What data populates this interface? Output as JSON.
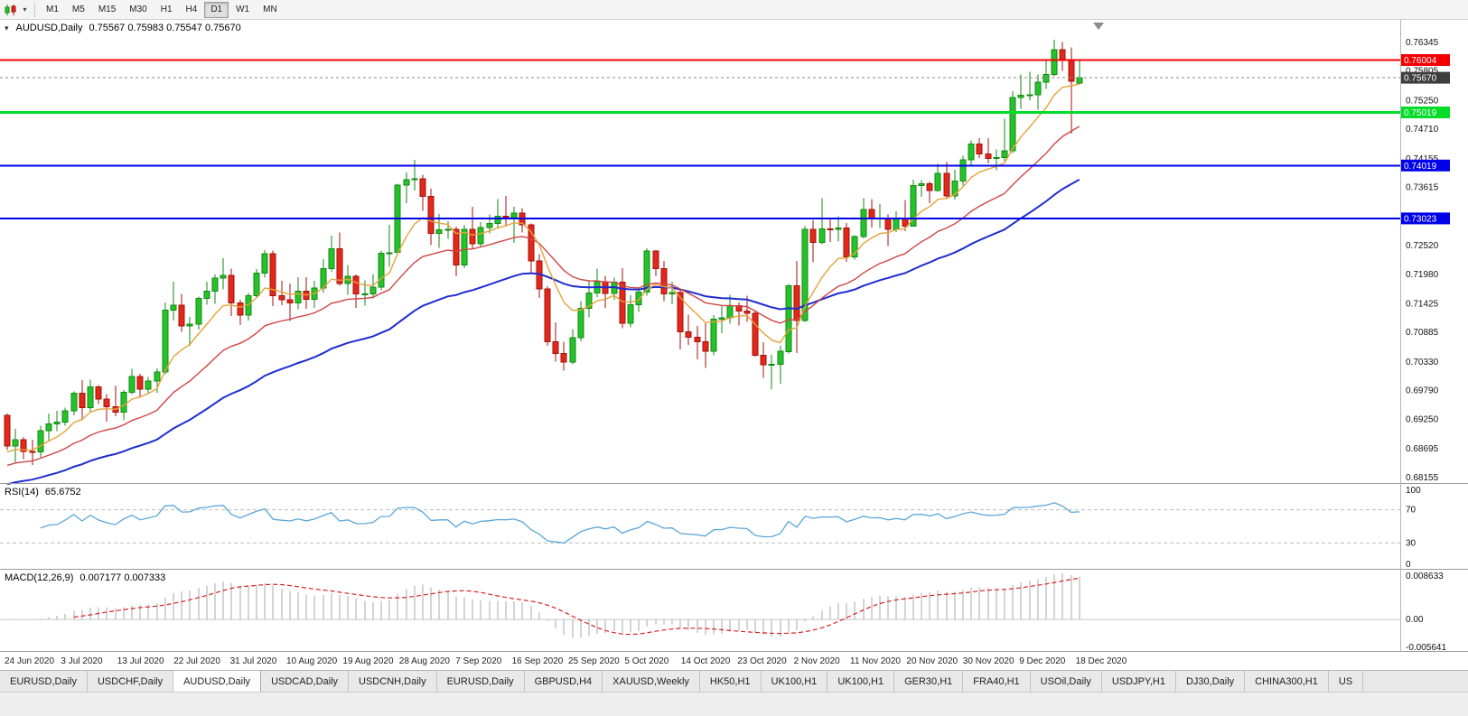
{
  "toolbar": {
    "timeframes": [
      "M1",
      "M5",
      "M15",
      "M30",
      "H1",
      "H4",
      "D1",
      "W1",
      "MN"
    ],
    "active_timeframe": "D1"
  },
  "chart": {
    "title": "AUDUSD,Daily",
    "ohlc_text": "0.75567 0.75983 0.75547 0.75670",
    "current_price": {
      "value": 0.7567,
      "label": "0.75670",
      "badge_color": "#3d3d3d"
    },
    "hlines": [
      {
        "value": 0.76004,
        "label": "0.76004",
        "color": "#f20000",
        "width": 2
      },
      {
        "value": 0.75019,
        "label": "0.75019",
        "color": "#00dc28",
        "width": 3
      },
      {
        "value": 0.74019,
        "label": "0.74019",
        "color": "#0000e8",
        "width": 2
      },
      {
        "value": 0.73023,
        "label": "0.73023",
        "color": "#0000e8",
        "width": 2
      }
    ],
    "colors": {
      "background": "#ffffff",
      "bull_fill": "#26c22b",
      "bull_stroke": "#128a12",
      "bear_fill": "#e3271b",
      "bear_stroke": "#a31208",
      "ma_fast": "#e5a23a",
      "ma_mid": "#d04545",
      "ma_slow": "#1f2dd0",
      "rsi_line": "#5aa6d8",
      "macd_hist": "#a9a9a9",
      "macd_signal": "#d92121"
    }
  },
  "rsi_panel": {
    "label": "RSI(14)",
    "value": "65.6752",
    "levels": [
      "100",
      "70",
      "30",
      "0"
    ]
  },
  "macd_panel": {
    "label": "MACD(12,26,9)",
    "values": "0.007177 0.007333",
    "axis_labels": [
      "0.008633",
      "0.00",
      "-0.005641"
    ]
  },
  "chart_data": {
    "type": "candlestick",
    "symbol": "AUDUSD",
    "timeframe": "Daily",
    "price_range": {
      "top": 0.7676,
      "bottom": 0.6806
    },
    "macd_value_range": {
      "top": 0.0092,
      "bottom": -0.0061
    },
    "y_ticks": [
      "0.76345",
      "0.75805",
      "0.75250",
      "0.74710",
      "0.74155",
      "0.73615",
      "0.73060",
      "0.72520",
      "0.71980",
      "0.71425",
      "0.70885",
      "0.70330",
      "0.69790",
      "0.69250",
      "0.68695",
      "0.68155"
    ],
    "x_labels": [
      "24 Jun 2020",
      "3 Jul 2020",
      "13 Jul 2020",
      "22 Jul 2020",
      "31 Jul 2020",
      "10 Aug 2020",
      "19 Aug 2020",
      "28 Aug 2020",
      "7 Sep 2020",
      "16 Sep 2020",
      "25 Sep 2020",
      "5 Oct 2020",
      "14 Oct 2020",
      "23 Oct 2020",
      "2 Nov 2020",
      "11 Nov 2020",
      "20 Nov 2020",
      "30 Nov 2020",
      "9 Dec 2020",
      "18 Dec 2020"
    ],
    "indicators": {
      "ma_fast_period": 8,
      "ma_mid_period": 21,
      "ma_slow_period": 45,
      "rsi_period": 14,
      "macd": [
        12,
        26,
        9
      ]
    },
    "candles": [
      [
        0.6932,
        0.6935,
        0.6866,
        0.6874
      ],
      [
        0.6874,
        0.6906,
        0.6842,
        0.6886
      ],
      [
        0.6886,
        0.6891,
        0.6849,
        0.6864
      ],
      [
        0.6864,
        0.6886,
        0.6838,
        0.6863
      ],
      [
        0.6863,
        0.6912,
        0.6853,
        0.6903
      ],
      [
        0.6903,
        0.6935,
        0.6883,
        0.6916
      ],
      [
        0.6916,
        0.694,
        0.6902,
        0.6919
      ],
      [
        0.6919,
        0.6946,
        0.6912,
        0.694
      ],
      [
        0.694,
        0.6977,
        0.6932,
        0.6973
      ],
      [
        0.6973,
        0.6998,
        0.6922,
        0.6946
      ],
      [
        0.6946,
        0.6999,
        0.6938,
        0.6985
      ],
      [
        0.6985,
        0.6989,
        0.6953,
        0.6962
      ],
      [
        0.6962,
        0.6972,
        0.692,
        0.6948
      ],
      [
        0.6948,
        0.6988,
        0.693,
        0.6938
      ],
      [
        0.6938,
        0.6979,
        0.6922,
        0.6975
      ],
      [
        0.6975,
        0.7019,
        0.6972,
        0.7005
      ],
      [
        0.7005,
        0.701,
        0.6965,
        0.6981
      ],
      [
        0.6981,
        0.7004,
        0.6974,
        0.6996
      ],
      [
        0.6996,
        0.702,
        0.6974,
        0.7013
      ],
      [
        0.7013,
        0.7144,
        0.7009,
        0.713
      ],
      [
        0.713,
        0.7183,
        0.711,
        0.7139
      ],
      [
        0.7139,
        0.716,
        0.7089,
        0.71
      ],
      [
        0.71,
        0.7117,
        0.7063,
        0.7103
      ],
      [
        0.7103,
        0.7155,
        0.7093,
        0.7152
      ],
      [
        0.7152,
        0.7183,
        0.714,
        0.7165
      ],
      [
        0.7165,
        0.7197,
        0.7142,
        0.719
      ],
      [
        0.719,
        0.7227,
        0.7169,
        0.7195
      ],
      [
        0.7195,
        0.7208,
        0.7119,
        0.7143
      ],
      [
        0.7143,
        0.7149,
        0.7102,
        0.712
      ],
      [
        0.712,
        0.7162,
        0.711,
        0.7157
      ],
      [
        0.7157,
        0.7207,
        0.7153,
        0.7199
      ],
      [
        0.7199,
        0.7243,
        0.7191,
        0.7236
      ],
      [
        0.7236,
        0.7242,
        0.7137,
        0.7157
      ],
      [
        0.7157,
        0.7185,
        0.7139,
        0.7149
      ],
      [
        0.7149,
        0.718,
        0.7109,
        0.7143
      ],
      [
        0.7143,
        0.7192,
        0.7131,
        0.7165
      ],
      [
        0.7165,
        0.7192,
        0.7132,
        0.715
      ],
      [
        0.715,
        0.7185,
        0.7134,
        0.7171
      ],
      [
        0.7171,
        0.7226,
        0.7162,
        0.7208
      ],
      [
        0.7208,
        0.727,
        0.7202,
        0.7245
      ],
      [
        0.7245,
        0.7276,
        0.7176,
        0.718
      ],
      [
        0.718,
        0.7215,
        0.7159,
        0.7193
      ],
      [
        0.7193,
        0.7197,
        0.7134,
        0.716
      ],
      [
        0.716,
        0.7186,
        0.7138,
        0.716
      ],
      [
        0.716,
        0.7198,
        0.7152,
        0.7173
      ],
      [
        0.7173,
        0.7242,
        0.7167,
        0.7237
      ],
      [
        0.7237,
        0.729,
        0.7211,
        0.7238
      ],
      [
        0.7238,
        0.7368,
        0.7233,
        0.7365
      ],
      [
        0.7365,
        0.7389,
        0.7331,
        0.7375
      ],
      [
        0.7375,
        0.7413,
        0.7355,
        0.7377
      ],
      [
        0.7377,
        0.7385,
        0.7317,
        0.7344
      ],
      [
        0.7344,
        0.7358,
        0.7252,
        0.7274
      ],
      [
        0.7274,
        0.7311,
        0.7247,
        0.7281
      ],
      [
        0.7281,
        0.7297,
        0.7264,
        0.7282
      ],
      [
        0.7282,
        0.7287,
        0.7193,
        0.7215
      ],
      [
        0.7215,
        0.729,
        0.7209,
        0.7282
      ],
      [
        0.7282,
        0.7324,
        0.7244,
        0.7255
      ],
      [
        0.7255,
        0.7295,
        0.7249,
        0.7285
      ],
      [
        0.7285,
        0.731,
        0.7274,
        0.7293
      ],
      [
        0.7293,
        0.7339,
        0.7285,
        0.7306
      ],
      [
        0.7306,
        0.7345,
        0.7287,
        0.7304
      ],
      [
        0.7304,
        0.7324,
        0.7256,
        0.7312
      ],
      [
        0.7312,
        0.7322,
        0.7276,
        0.729
      ],
      [
        0.729,
        0.7293,
        0.7199,
        0.7222
      ],
      [
        0.7222,
        0.7235,
        0.7153,
        0.717
      ],
      [
        0.717,
        0.7175,
        0.7063,
        0.707
      ],
      [
        0.707,
        0.7107,
        0.7033,
        0.7048
      ],
      [
        0.7048,
        0.707,
        0.7016,
        0.7032
      ],
      [
        0.7032,
        0.7094,
        0.7028,
        0.7078
      ],
      [
        0.7078,
        0.7147,
        0.7071,
        0.7133
      ],
      [
        0.7133,
        0.7186,
        0.7116,
        0.7162
      ],
      [
        0.7162,
        0.7208,
        0.7154,
        0.7183
      ],
      [
        0.7183,
        0.7194,
        0.7133,
        0.7161
      ],
      [
        0.7161,
        0.7191,
        0.7149,
        0.7182
      ],
      [
        0.7182,
        0.7209,
        0.7096,
        0.7105
      ],
      [
        0.7105,
        0.7158,
        0.7097,
        0.714
      ],
      [
        0.714,
        0.7172,
        0.7126,
        0.7164
      ],
      [
        0.7164,
        0.7246,
        0.7157,
        0.7241
      ],
      [
        0.7241,
        0.7243,
        0.7193,
        0.7208
      ],
      [
        0.7208,
        0.7222,
        0.7147,
        0.716
      ],
      [
        0.716,
        0.7183,
        0.7141,
        0.7163
      ],
      [
        0.7163,
        0.7167,
        0.7056,
        0.7089
      ],
      [
        0.7089,
        0.7121,
        0.7064,
        0.7079
      ],
      [
        0.7079,
        0.71,
        0.7037,
        0.707
      ],
      [
        0.707,
        0.7105,
        0.7021,
        0.7052
      ],
      [
        0.7052,
        0.712,
        0.7045,
        0.7113
      ],
      [
        0.7113,
        0.7138,
        0.7086,
        0.7115
      ],
      [
        0.7115,
        0.7159,
        0.7104,
        0.7138
      ],
      [
        0.7138,
        0.7144,
        0.7101,
        0.7128
      ],
      [
        0.7128,
        0.7157,
        0.7108,
        0.7124
      ],
      [
        0.7124,
        0.7128,
        0.7042,
        0.7045
      ],
      [
        0.7045,
        0.7069,
        0.7002,
        0.7027
      ],
      [
        0.7027,
        0.7046,
        0.6981,
        0.7028
      ],
      [
        0.7028,
        0.7063,
        0.6991,
        0.7052
      ],
      [
        0.7052,
        0.7179,
        0.7048,
        0.7176
      ],
      [
        0.7176,
        0.7222,
        0.7049,
        0.711
      ],
      [
        0.711,
        0.7288,
        0.7108,
        0.7282
      ],
      [
        0.7282,
        0.7299,
        0.722,
        0.7257
      ],
      [
        0.7257,
        0.734,
        0.7254,
        0.7283
      ],
      [
        0.7283,
        0.7302,
        0.7258,
        0.7282
      ],
      [
        0.7282,
        0.7306,
        0.7259,
        0.7284
      ],
      [
        0.7284,
        0.7294,
        0.7221,
        0.723
      ],
      [
        0.723,
        0.7271,
        0.7225,
        0.7268
      ],
      [
        0.7268,
        0.734,
        0.7265,
        0.7319
      ],
      [
        0.7319,
        0.7339,
        0.7285,
        0.7302
      ],
      [
        0.7302,
        0.7329,
        0.7284,
        0.7303
      ],
      [
        0.7303,
        0.731,
        0.725,
        0.7282
      ],
      [
        0.7282,
        0.7316,
        0.7277,
        0.7302
      ],
      [
        0.7302,
        0.7337,
        0.7278,
        0.7288
      ],
      [
        0.7288,
        0.7375,
        0.7287,
        0.7364
      ],
      [
        0.7364,
        0.7374,
        0.7343,
        0.7368
      ],
      [
        0.7368,
        0.7372,
        0.7331,
        0.7355
      ],
      [
        0.7355,
        0.7405,
        0.7352,
        0.7387
      ],
      [
        0.7387,
        0.7408,
        0.7339,
        0.7345
      ],
      [
        0.7345,
        0.7394,
        0.7338,
        0.7373
      ],
      [
        0.7373,
        0.742,
        0.7364,
        0.7413
      ],
      [
        0.7413,
        0.7449,
        0.74,
        0.7442
      ],
      [
        0.7442,
        0.7453,
        0.7416,
        0.7424
      ],
      [
        0.7424,
        0.7453,
        0.7406,
        0.7415
      ],
      [
        0.7415,
        0.7432,
        0.7393,
        0.7417
      ],
      [
        0.7417,
        0.749,
        0.741,
        0.743
      ],
      [
        0.743,
        0.7542,
        0.7425,
        0.753
      ],
      [
        0.753,
        0.7573,
        0.7509,
        0.7534
      ],
      [
        0.7534,
        0.7578,
        0.7524,
        0.7535
      ],
      [
        0.7535,
        0.7573,
        0.7507,
        0.7559
      ],
      [
        0.7559,
        0.7599,
        0.7546,
        0.7573
      ],
      [
        0.7573,
        0.7639,
        0.757,
        0.762
      ],
      [
        0.762,
        0.7634,
        0.758,
        0.76
      ],
      [
        0.76,
        0.7624,
        0.7462,
        0.756
      ],
      [
        0.75567,
        0.75983,
        0.75547,
        0.7567
      ]
    ]
  },
  "tabs": [
    {
      "label": "EURUSD,Daily",
      "active": false
    },
    {
      "label": "USDCHF,Daily",
      "active": false
    },
    {
      "label": "AUDUSD,Daily",
      "active": true
    },
    {
      "label": "USDCAD,Daily",
      "active": false
    },
    {
      "label": "USDCNH,Daily",
      "active": false
    },
    {
      "label": "EURUSD,Daily",
      "active": false
    },
    {
      "label": "GBPUSD,H4",
      "active": false
    },
    {
      "label": "XAUUSD,Weekly",
      "active": false
    },
    {
      "label": "HK50,H1",
      "active": false
    },
    {
      "label": "UK100,H1",
      "active": false
    },
    {
      "label": "UK100,H1",
      "active": false
    },
    {
      "label": "GER30,H1",
      "active": false
    },
    {
      "label": "FRA40,H1",
      "active": false
    },
    {
      "label": "USOil,Daily",
      "active": false
    },
    {
      "label": "USDJPY,H1",
      "active": false
    },
    {
      "label": "DJ30,Daily",
      "active": false
    },
    {
      "label": "CHINA300,H1",
      "active": false
    },
    {
      "label": "US",
      "active": false
    }
  ]
}
